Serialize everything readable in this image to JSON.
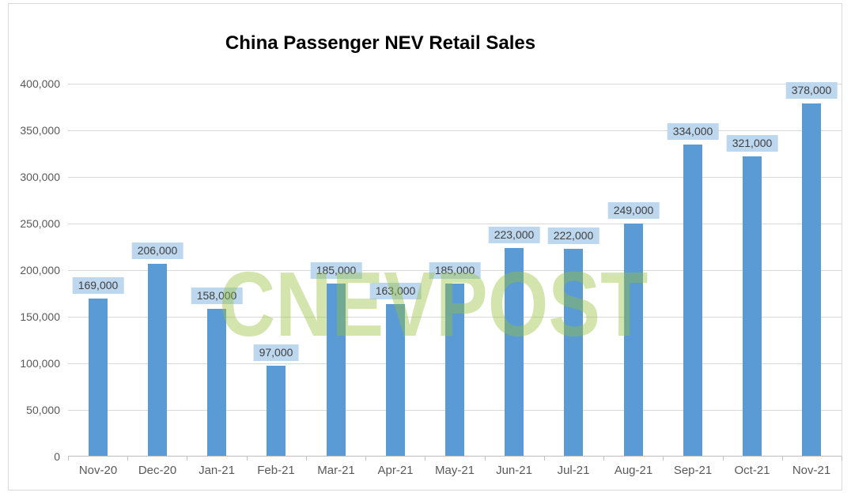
{
  "title": "China Passenger NEV Retail Sales",
  "watermark": "CNEVPOST",
  "colors": {
    "bar": "#5B9BD5",
    "data_label_background": "#BDD7EE",
    "data_label_text": "#404040",
    "gridline": "#D9D9D9",
    "axis_line": "#BFBFBF",
    "axis_text": "#595959",
    "watermark_green": "rgba(151,191,59,0.42)",
    "frame_border": "#D9D9D9",
    "title_text": "#000000"
  },
  "chart_data": {
    "type": "bar",
    "title": "China Passenger NEV Retail Sales",
    "xlabel": "",
    "ylabel": "",
    "categories": [
      "Nov-20",
      "Dec-20",
      "Jan-21",
      "Feb-21",
      "Mar-21",
      "Apr-21",
      "May-21",
      "Jun-21",
      "Jul-21",
      "Aug-21",
      "Sep-21",
      "Oct-21",
      "Nov-21"
    ],
    "values": [
      169000,
      206000,
      158000,
      97000,
      185000,
      163000,
      185000,
      223000,
      222000,
      249000,
      334000,
      321000,
      378000
    ],
    "data_labels": [
      "169,000",
      "206,000",
      "158,000",
      "97,000",
      "185,000",
      "163,000",
      "185,000",
      "223,000",
      "222,000",
      "249,000",
      "334,000",
      "321,000",
      "378,000"
    ],
    "ylim": [
      0,
      400000
    ],
    "y_tick_interval": 50000,
    "y_tick_labels": [
      "400,000",
      "350,000",
      "300,000",
      "250,000",
      "200,000",
      "150,000",
      "100,000",
      "50,000",
      "0"
    ],
    "grid": true,
    "legend_position": "none",
    "data_label_position": "outside-end"
  }
}
